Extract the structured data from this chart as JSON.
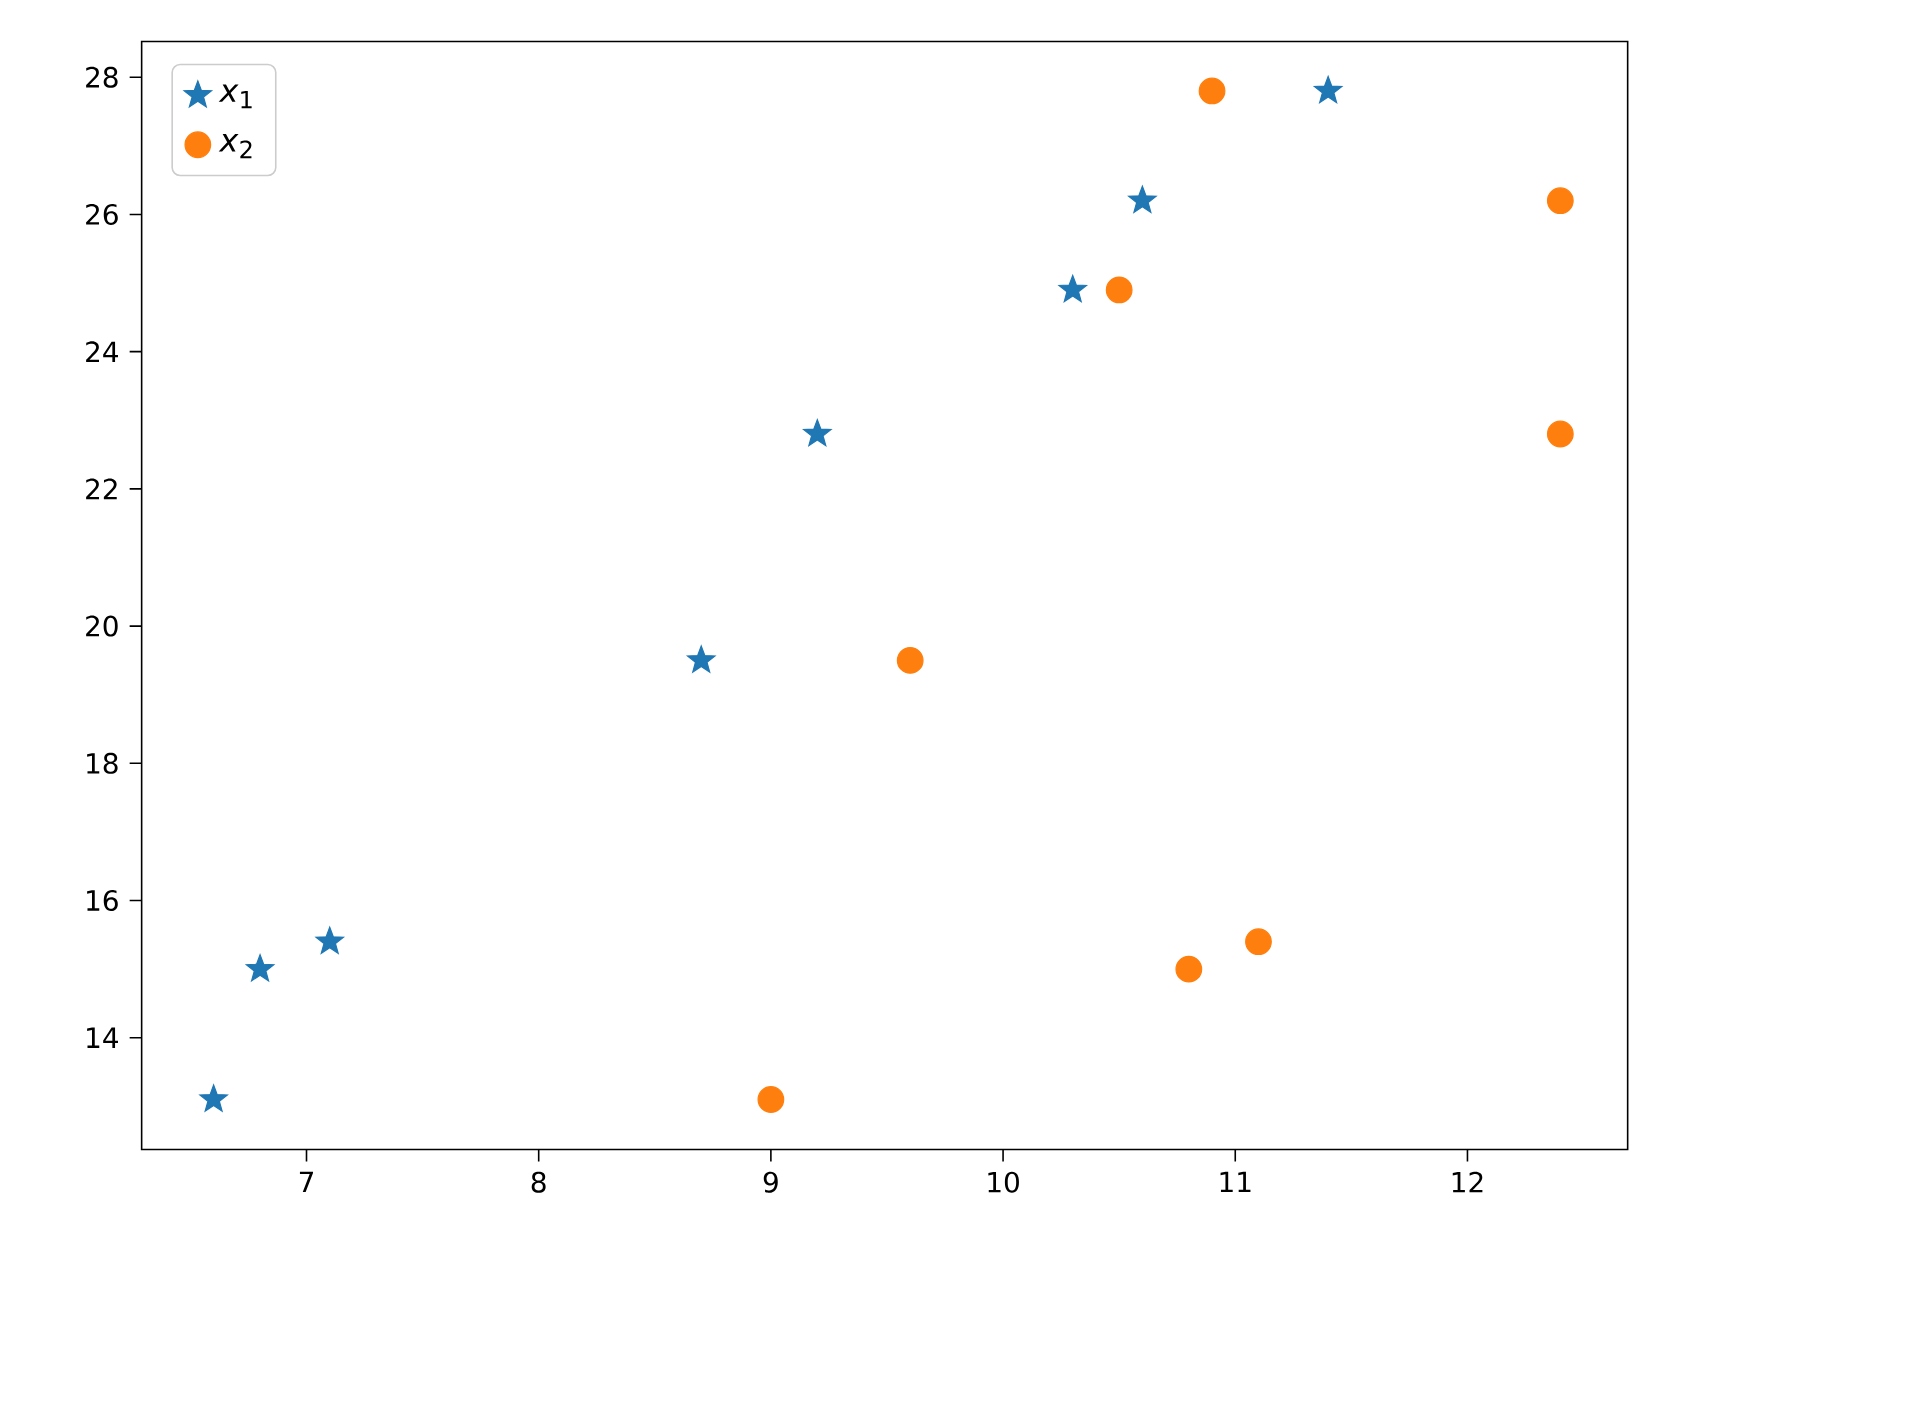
{
  "chart_data": {
    "type": "scatter",
    "legend": "top left",
    "xlim": [
      6.29,
      12.69
    ],
    "ylim": [
      12.37,
      28.52
    ],
    "xticks": [
      7,
      8,
      9,
      10,
      11,
      12
    ],
    "yticks": [
      14,
      16,
      18,
      20,
      22,
      24,
      26,
      28
    ],
    "series": [
      {
        "name": "*x*$_{1}$",
        "color": "#1f77b4",
        "marker": "star",
        "x": [
          6.6,
          6.8,
          7.1,
          8.7,
          9.2,
          10.3,
          10.6,
          11.4
        ],
        "values": [
          13.1,
          15.0,
          15.4,
          19.5,
          22.8,
          24.9,
          26.2,
          27.8
        ]
      },
      {
        "name": "*x*$_{2}$",
        "color": "#ff7f0e",
        "marker": "circle",
        "x": [
          9.0,
          10.8,
          11.1,
          9.6,
          10.5,
          10.9,
          12.4,
          12.4
        ],
        "values": [
          13.1,
          15.0,
          15.4,
          19.5,
          24.9,
          27.8,
          26.2,
          22.8
        ]
      }
    ]
  }
}
